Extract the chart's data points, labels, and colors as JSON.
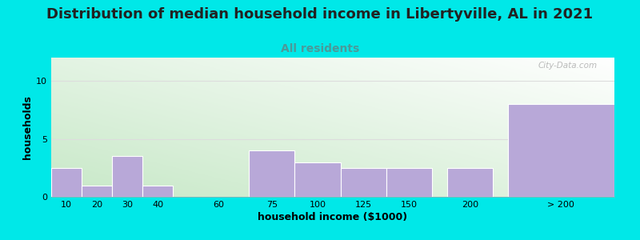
{
  "title": "Distribution of median household income in Libertyville, AL in 2021",
  "subtitle": "All residents",
  "xlabel": "household income ($1000)",
  "ylabel": "households",
  "bar_labels": [
    "10",
    "20",
    "30",
    "40",
    "60",
    "75",
    "100",
    "125",
    "150",
    "200",
    "> 200"
  ],
  "bar_values": [
    2.5,
    1.0,
    3.5,
    1.0,
    0.0,
    4.0,
    3.0,
    2.5,
    2.5,
    2.5,
    8.0
  ],
  "bar_color": "#b8a8d8",
  "bar_edge_color": "#ffffff",
  "ylim": [
    0,
    12
  ],
  "yticks": [
    0,
    5,
    10
  ],
  "background_outer": "#00e8e8",
  "watermark": "City-Data.com",
  "title_fontsize": 13,
  "subtitle_fontsize": 10,
  "subtitle_color": "#4a9a9a",
  "label_fontsize": 9,
  "tick_fontsize": 8,
  "positions": [
    0,
    1,
    2,
    3,
    5,
    6.5,
    8.0,
    9.5,
    11.0,
    13.0,
    15.0
  ],
  "widths": [
    1,
    1,
    1,
    1,
    1,
    1.5,
    1.5,
    1.5,
    1.5,
    1.5,
    3.5
  ]
}
